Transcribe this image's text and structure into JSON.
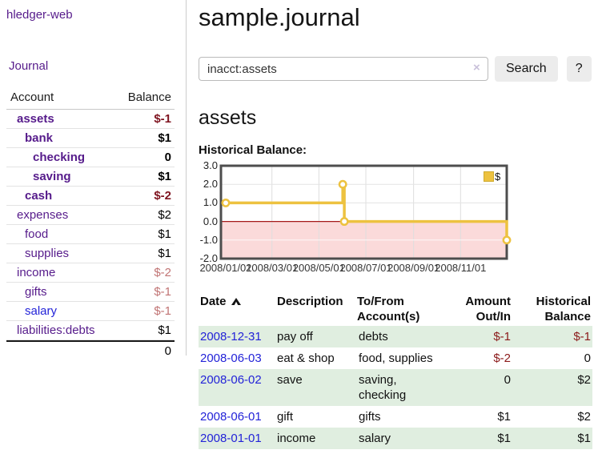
{
  "app": {
    "title": "hledger-web",
    "nav_journal": "Journal"
  },
  "sidebar": {
    "header": {
      "account": "Account",
      "balance": "Balance"
    },
    "accounts": [
      {
        "name": "assets",
        "balance": "$-1",
        "depth": 1,
        "bold": true,
        "blue": false
      },
      {
        "name": "bank",
        "balance": "$1",
        "depth": 2,
        "bold": true,
        "blue": false
      },
      {
        "name": "checking",
        "balance": "0",
        "depth": 3,
        "bold": true,
        "blue": false
      },
      {
        "name": "saving",
        "balance": "$1",
        "depth": 3,
        "bold": true,
        "blue": false
      },
      {
        "name": "cash",
        "balance": "$-2",
        "depth": 2,
        "bold": true,
        "blue": false
      },
      {
        "name": "expenses",
        "balance": "$2",
        "depth": 1,
        "bold": false,
        "blue": false
      },
      {
        "name": "food",
        "balance": "$1",
        "depth": 2,
        "bold": false,
        "blue": false
      },
      {
        "name": "supplies",
        "balance": "$1",
        "depth": 2,
        "bold": false,
        "blue": false
      },
      {
        "name": "income",
        "balance": "$-2",
        "depth": 1,
        "bold": false,
        "blue": false
      },
      {
        "name": "gifts",
        "balance": "$-1",
        "depth": 2,
        "bold": false,
        "blue": false
      },
      {
        "name": "salary",
        "balance": "$-1",
        "depth": 2,
        "bold": false,
        "blue": true
      },
      {
        "name": "liabilities:debts",
        "balance": "$1",
        "depth": 1,
        "bold": false,
        "blue": false
      }
    ],
    "total": "0"
  },
  "header": {
    "title": "sample.journal"
  },
  "search": {
    "value": "inacct:assets",
    "clear_icon": "×",
    "button": "Search",
    "help_button": "?"
  },
  "account_page": {
    "title": "assets",
    "chart_label": "Historical Balance:"
  },
  "chart_data": {
    "type": "line",
    "step": true,
    "series": [
      {
        "name": "$",
        "color": "#edc240",
        "x": [
          "2008-01-01",
          "2008-06-01",
          "2008-06-03",
          "2008-12-31"
        ],
        "values": [
          1,
          2,
          0,
          -1
        ]
      }
    ],
    "ylim": [
      -2,
      3
    ],
    "xlim": [
      "2008-01-01",
      "2008-12-31"
    ],
    "y_ticks": [
      "3.0",
      "2.0",
      "1.0",
      "0.0",
      "-1.0",
      "-2.0"
    ],
    "x_ticks": [
      "2008/01/01",
      "2008/03/01",
      "2008/05/01",
      "2008/07/01",
      "2008/09/01",
      "2008/11/01"
    ],
    "legend": {
      "label": "$",
      "position": "top-right"
    },
    "grid": true,
    "negative_region_fill": "#fbdada",
    "zero_line_color": "#a41a1a",
    "border_color": "#4d4d4d"
  },
  "register": {
    "headers": {
      "date": "Date",
      "description": "Description",
      "tofrom": "To/From Account(s)",
      "amount": "Amount Out/In",
      "balance": "Historical Balance"
    },
    "sort_icon": "chevron-up",
    "rows": [
      {
        "date": "2008-12-31",
        "description": "pay off",
        "tofrom": "debts",
        "amount": "$-1",
        "balance": "$-1"
      },
      {
        "date": "2008-06-03",
        "description": "eat & shop",
        "tofrom": "food, supplies",
        "amount": "$-2",
        "balance": "0"
      },
      {
        "date": "2008-06-02",
        "description": "save",
        "tofrom": "saving, checking",
        "amount": "0",
        "balance": "$2"
      },
      {
        "date": "2008-06-01",
        "description": "gift",
        "tofrom": "gifts",
        "amount": "$1",
        "balance": "$2"
      },
      {
        "date": "2008-01-01",
        "description": "income",
        "tofrom": "salary",
        "amount": "$1",
        "balance": "$1"
      }
    ]
  }
}
